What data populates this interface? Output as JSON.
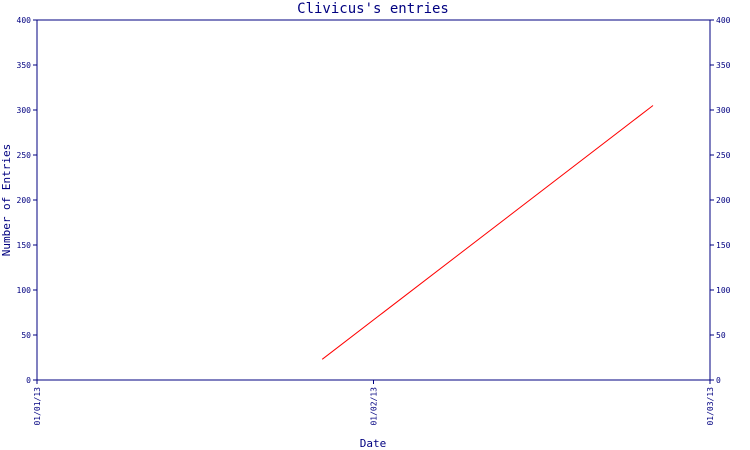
{
  "chart_data": {
    "type": "line",
    "title": "Clivicus's entries",
    "xlabel": "Date",
    "ylabel": "Number of Entries",
    "x_ticks": [
      "01/01/13",
      "01/02/13",
      "01/03/13"
    ],
    "x_domain": [
      "2013-01-01",
      "2013-03-01"
    ],
    "ylim": [
      0,
      400
    ],
    "y_ticks": [
      0,
      50,
      100,
      150,
      200,
      250,
      300,
      350,
      400
    ],
    "right_axis": true,
    "grid": false,
    "series": [
      {
        "color": "#ff0000",
        "points": [
          {
            "x": "2013-01-26",
            "y": 23
          },
          {
            "x": "2013-02-24",
            "y": 305
          }
        ]
      }
    ]
  },
  "colors": {
    "axis": "#000080",
    "text": "#000080",
    "line": "#ff0000",
    "background": "#ffffff"
  }
}
